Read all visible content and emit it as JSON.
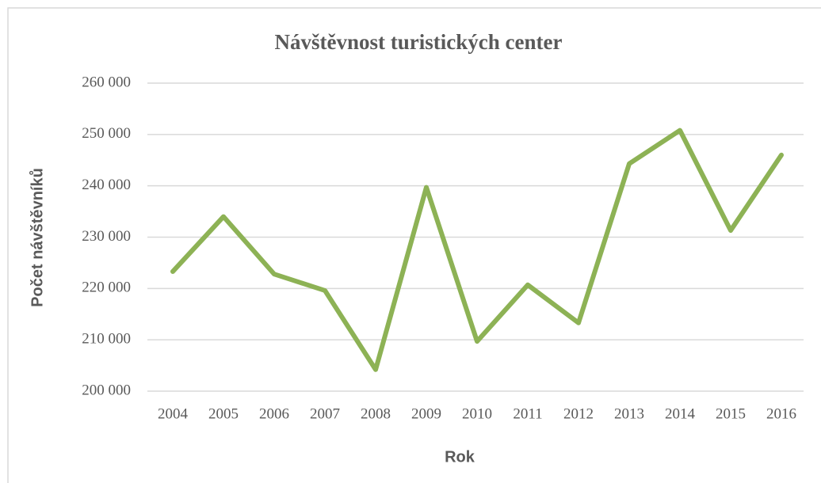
{
  "chart_data": {
    "type": "line",
    "title": "Návštěvnost turistických center",
    "x_label": "Rok",
    "y_label": "Počet návštěvníků",
    "categories": [
      "2004",
      "2005",
      "2006",
      "2007",
      "2008",
      "2009",
      "2010",
      "2011",
      "2012",
      "2013",
      "2014",
      "2015",
      "2016"
    ],
    "series": [
      {
        "name": "Počet návštěvníků",
        "color": "#8db255",
        "values": [
          223300,
          234000,
          222800,
          219600,
          204200,
          239700,
          209700,
          220700,
          213300,
          244300,
          250800,
          231300,
          246000
        ]
      }
    ],
    "ylim": [
      200000,
      260000
    ],
    "yticks": [
      {
        "value": 200000,
        "label": "200 000"
      },
      {
        "value": 210000,
        "label": "210 000"
      },
      {
        "value": 220000,
        "label": "220 000"
      },
      {
        "value": 230000,
        "label": "230 000"
      },
      {
        "value": 240000,
        "label": "240 000"
      },
      {
        "value": 250000,
        "label": "250 000"
      },
      {
        "value": 260000,
        "label": "260 000"
      }
    ],
    "grid": true
  }
}
